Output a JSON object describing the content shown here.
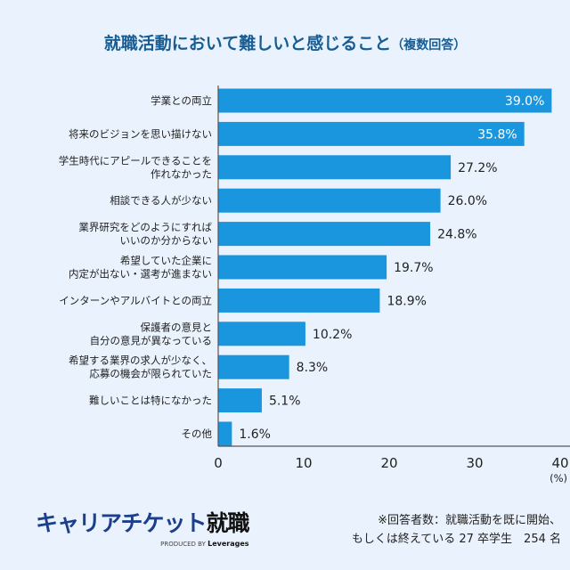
{
  "chart_data": {
    "type": "bar",
    "orientation": "horizontal",
    "title": "就職活動において難しいと感じること",
    "subtitle": "（複数回答）",
    "categories": [
      [
        "学業との両立"
      ],
      [
        "将来のビジョンを思い描けない"
      ],
      [
        "学生時代にアピールできることを",
        "作れなかった"
      ],
      [
        "相談できる人が少ない"
      ],
      [
        "業界研究をどのようにすれば",
        "いいのか分からない"
      ],
      [
        "希望していた企業に",
        "内定が出ない・選考が進まない"
      ],
      [
        "インターンやアルバイトとの両立"
      ],
      [
        "保護者の意見と",
        "自分の意見が異なっている"
      ],
      [
        "希望する業界の求人が少なく、",
        "応募の機会が限られていた"
      ],
      [
        "難しいことは特になかった"
      ],
      [
        "その他"
      ]
    ],
    "values": [
      39.0,
      35.8,
      27.2,
      26.0,
      24.8,
      19.7,
      18.9,
      10.2,
      8.3,
      5.1,
      1.6
    ],
    "value_labels": [
      "39.0%",
      "35.8%",
      "27.2%",
      "26.0%",
      "24.8%",
      "19.7%",
      "18.9%",
      "10.2%",
      "8.3%",
      "5.1%",
      "1.6%"
    ],
    "xlim": [
      0,
      40
    ],
    "xticks": [
      "0",
      "10",
      "20",
      "30",
      "40"
    ],
    "xunit": "(%)",
    "grid": false,
    "bar_color": "#1a96df"
  },
  "footer": {
    "logo_text": "キャリアチケット",
    "logo_text_bold": "就職",
    "produced_by": "PRODUCED BY",
    "brand": "Leverages",
    "note_line1": "※回答者数：就職活動を既に開始、",
    "note_line2": "もしくは終えている 27 卒学生　254 名"
  }
}
